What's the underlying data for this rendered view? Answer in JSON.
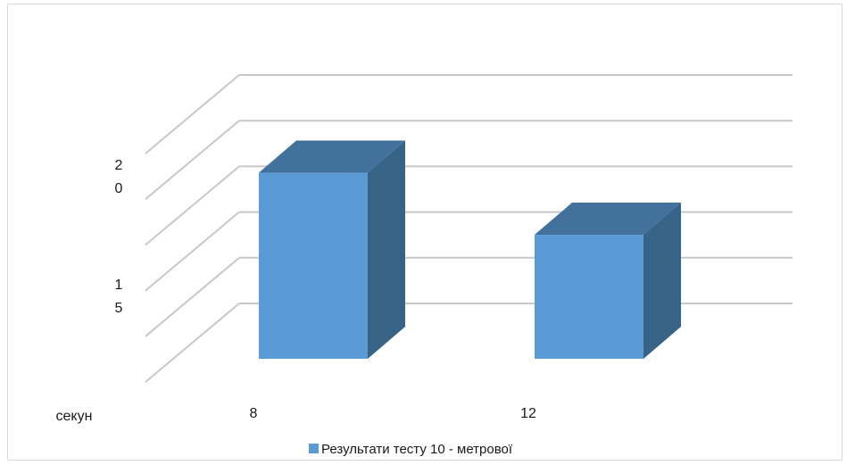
{
  "chart_data": {
    "type": "bar",
    "style": "3d-column",
    "categories": [
      "8",
      "12"
    ],
    "series": [
      {
        "name": "Результати тесту 10 - метрової",
        "values": [
          20.4,
          18.5
        ]
      }
    ],
    "ylim": [
      15,
      22
    ],
    "y_tick_labels": [
      {
        "value": 20,
        "text": "2\n0"
      },
      {
        "value": 15,
        "text": "1\n5"
      }
    ],
    "ylabel": "секун",
    "legend_position": "bottom",
    "grid": true,
    "colors": {
      "front": "#5B9BD5",
      "side": "#376387",
      "top": "#41719C",
      "grid": "#c8c8c8",
      "frame": "#d9d9d9"
    }
  }
}
